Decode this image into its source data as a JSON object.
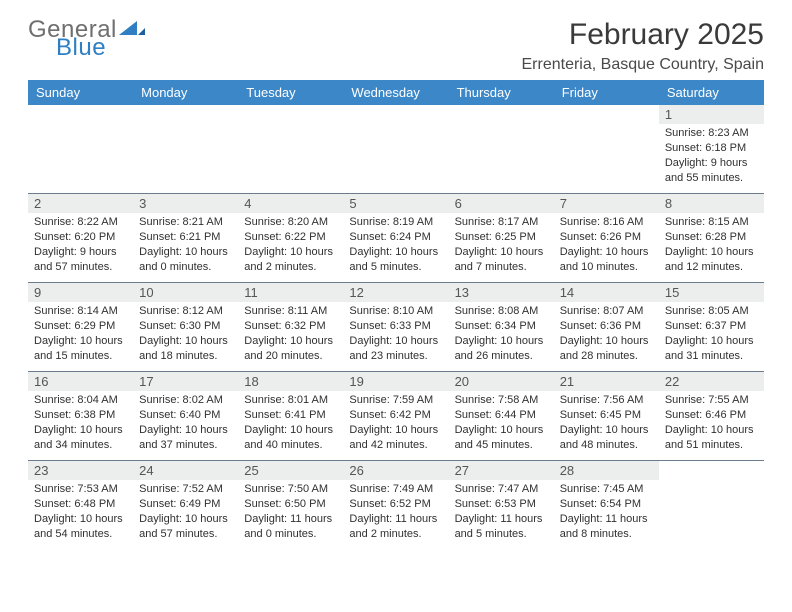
{
  "logo": {
    "part1": "General",
    "part2": "Blue"
  },
  "title": "February 2025",
  "location": "Errenteria, Basque Country, Spain",
  "colors": {
    "header_bg": "#3b87c8",
    "header_text": "#ffffff",
    "daynum_bg": "#eceeee",
    "rule": "#6b7c8c",
    "logo_gray": "#6f6f6f",
    "logo_blue": "#2f7fc2"
  },
  "dow": [
    "Sunday",
    "Monday",
    "Tuesday",
    "Wednesday",
    "Thursday",
    "Friday",
    "Saturday"
  ],
  "weeks": [
    [
      {
        "n": "",
        "sr": "",
        "ss": "",
        "dl": ""
      },
      {
        "n": "",
        "sr": "",
        "ss": "",
        "dl": ""
      },
      {
        "n": "",
        "sr": "",
        "ss": "",
        "dl": ""
      },
      {
        "n": "",
        "sr": "",
        "ss": "",
        "dl": ""
      },
      {
        "n": "",
        "sr": "",
        "ss": "",
        "dl": ""
      },
      {
        "n": "",
        "sr": "",
        "ss": "",
        "dl": ""
      },
      {
        "n": "1",
        "sr": "Sunrise: 8:23 AM",
        "ss": "Sunset: 6:18 PM",
        "dl": "Daylight: 9 hours and 55 minutes."
      }
    ],
    [
      {
        "n": "2",
        "sr": "Sunrise: 8:22 AM",
        "ss": "Sunset: 6:20 PM",
        "dl": "Daylight: 9 hours and 57 minutes."
      },
      {
        "n": "3",
        "sr": "Sunrise: 8:21 AM",
        "ss": "Sunset: 6:21 PM",
        "dl": "Daylight: 10 hours and 0 minutes."
      },
      {
        "n": "4",
        "sr": "Sunrise: 8:20 AM",
        "ss": "Sunset: 6:22 PM",
        "dl": "Daylight: 10 hours and 2 minutes."
      },
      {
        "n": "5",
        "sr": "Sunrise: 8:19 AM",
        "ss": "Sunset: 6:24 PM",
        "dl": "Daylight: 10 hours and 5 minutes."
      },
      {
        "n": "6",
        "sr": "Sunrise: 8:17 AM",
        "ss": "Sunset: 6:25 PM",
        "dl": "Daylight: 10 hours and 7 minutes."
      },
      {
        "n": "7",
        "sr": "Sunrise: 8:16 AM",
        "ss": "Sunset: 6:26 PM",
        "dl": "Daylight: 10 hours and 10 minutes."
      },
      {
        "n": "8",
        "sr": "Sunrise: 8:15 AM",
        "ss": "Sunset: 6:28 PM",
        "dl": "Daylight: 10 hours and 12 minutes."
      }
    ],
    [
      {
        "n": "9",
        "sr": "Sunrise: 8:14 AM",
        "ss": "Sunset: 6:29 PM",
        "dl": "Daylight: 10 hours and 15 minutes."
      },
      {
        "n": "10",
        "sr": "Sunrise: 8:12 AM",
        "ss": "Sunset: 6:30 PM",
        "dl": "Daylight: 10 hours and 18 minutes."
      },
      {
        "n": "11",
        "sr": "Sunrise: 8:11 AM",
        "ss": "Sunset: 6:32 PM",
        "dl": "Daylight: 10 hours and 20 minutes."
      },
      {
        "n": "12",
        "sr": "Sunrise: 8:10 AM",
        "ss": "Sunset: 6:33 PM",
        "dl": "Daylight: 10 hours and 23 minutes."
      },
      {
        "n": "13",
        "sr": "Sunrise: 8:08 AM",
        "ss": "Sunset: 6:34 PM",
        "dl": "Daylight: 10 hours and 26 minutes."
      },
      {
        "n": "14",
        "sr": "Sunrise: 8:07 AM",
        "ss": "Sunset: 6:36 PM",
        "dl": "Daylight: 10 hours and 28 minutes."
      },
      {
        "n": "15",
        "sr": "Sunrise: 8:05 AM",
        "ss": "Sunset: 6:37 PM",
        "dl": "Daylight: 10 hours and 31 minutes."
      }
    ],
    [
      {
        "n": "16",
        "sr": "Sunrise: 8:04 AM",
        "ss": "Sunset: 6:38 PM",
        "dl": "Daylight: 10 hours and 34 minutes."
      },
      {
        "n": "17",
        "sr": "Sunrise: 8:02 AM",
        "ss": "Sunset: 6:40 PM",
        "dl": "Daylight: 10 hours and 37 minutes."
      },
      {
        "n": "18",
        "sr": "Sunrise: 8:01 AM",
        "ss": "Sunset: 6:41 PM",
        "dl": "Daylight: 10 hours and 40 minutes."
      },
      {
        "n": "19",
        "sr": "Sunrise: 7:59 AM",
        "ss": "Sunset: 6:42 PM",
        "dl": "Daylight: 10 hours and 42 minutes."
      },
      {
        "n": "20",
        "sr": "Sunrise: 7:58 AM",
        "ss": "Sunset: 6:44 PM",
        "dl": "Daylight: 10 hours and 45 minutes."
      },
      {
        "n": "21",
        "sr": "Sunrise: 7:56 AM",
        "ss": "Sunset: 6:45 PM",
        "dl": "Daylight: 10 hours and 48 minutes."
      },
      {
        "n": "22",
        "sr": "Sunrise: 7:55 AM",
        "ss": "Sunset: 6:46 PM",
        "dl": "Daylight: 10 hours and 51 minutes."
      }
    ],
    [
      {
        "n": "23",
        "sr": "Sunrise: 7:53 AM",
        "ss": "Sunset: 6:48 PM",
        "dl": "Daylight: 10 hours and 54 minutes."
      },
      {
        "n": "24",
        "sr": "Sunrise: 7:52 AM",
        "ss": "Sunset: 6:49 PM",
        "dl": "Daylight: 10 hours and 57 minutes."
      },
      {
        "n": "25",
        "sr": "Sunrise: 7:50 AM",
        "ss": "Sunset: 6:50 PM",
        "dl": "Daylight: 11 hours and 0 minutes."
      },
      {
        "n": "26",
        "sr": "Sunrise: 7:49 AM",
        "ss": "Sunset: 6:52 PM",
        "dl": "Daylight: 11 hours and 2 minutes."
      },
      {
        "n": "27",
        "sr": "Sunrise: 7:47 AM",
        "ss": "Sunset: 6:53 PM",
        "dl": "Daylight: 11 hours and 5 minutes."
      },
      {
        "n": "28",
        "sr": "Sunrise: 7:45 AM",
        "ss": "Sunset: 6:54 PM",
        "dl": "Daylight: 11 hours and 8 minutes."
      },
      {
        "n": "",
        "sr": "",
        "ss": "",
        "dl": ""
      }
    ]
  ]
}
